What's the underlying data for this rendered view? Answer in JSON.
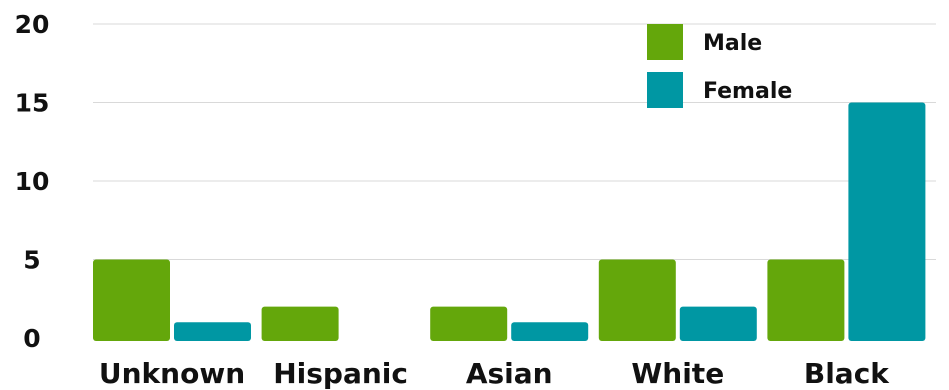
{
  "chart_data": {
    "type": "bar",
    "categories": [
      "Unknown",
      "Hispanic",
      "Asian",
      "White",
      "Black"
    ],
    "series": [
      {
        "name": "Male",
        "color": "#64a70b",
        "values": [
          5,
          2,
          2,
          5,
          5
        ]
      },
      {
        "name": "Female",
        "color": "#0097a3",
        "values": [
          1,
          0,
          1,
          2,
          15
        ]
      }
    ],
    "ylim": [
      0,
      20
    ],
    "yticks": [
      "0",
      "5",
      "10",
      "15",
      "20"
    ],
    "grid": true,
    "legend": "top-right"
  }
}
